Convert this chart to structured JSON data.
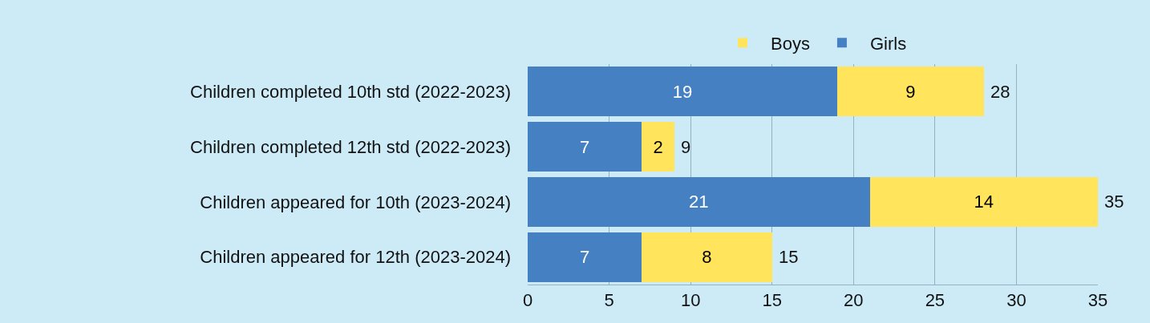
{
  "chart_data": {
    "type": "bar",
    "orientation": "horizontal",
    "stacked": true,
    "categories": [
      "Children completed 10th std (2022-2023)",
      "Children completed 12th std (2022-2023)",
      "Children appeared for 10th (2023-2024)",
      "Children appeared for 12th (2023-2024)"
    ],
    "series": [
      {
        "name": "Girls",
        "color": "#4581c2",
        "values": [
          19,
          7,
          21,
          7
        ]
      },
      {
        "name": "Boys",
        "color": "#ffe45c",
        "values": [
          9,
          2,
          14,
          8
        ]
      }
    ],
    "totals": [
      "28",
      "9",
      "35",
      "15"
    ],
    "data_labels": true,
    "xlim": [
      0,
      35
    ],
    "xticks": [
      0,
      5,
      10,
      15,
      20,
      25,
      30,
      35
    ],
    "grid": "x",
    "legend": "top"
  }
}
